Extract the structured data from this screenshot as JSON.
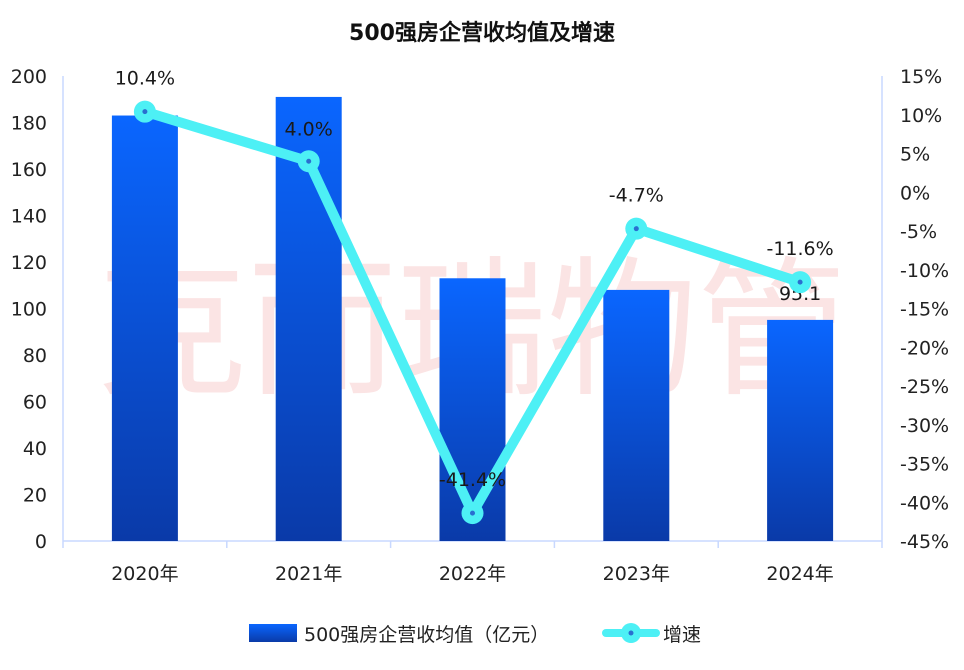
{
  "chart_data": {
    "type": "bar",
    "title": "500强房企营收均值及增速",
    "categories": [
      "2020年",
      "2021年",
      "2022年",
      "2023年",
      "2024年"
    ],
    "series": [
      {
        "name": "500强房企营收均值（亿元）",
        "type": "bar",
        "axis": "left",
        "values": [
          183,
          191,
          113,
          108,
          95.1
        ],
        "data_labels": [
          "",
          "",
          "",
          "",
          "95.1"
        ]
      },
      {
        "name": "增速",
        "type": "line",
        "axis": "right",
        "values": [
          10.4,
          4.0,
          -41.4,
          -4.7,
          -11.6
        ],
        "data_labels": [
          "10.4%",
          "4.0%",
          "-41.4%",
          "-4.7%",
          "-11.6%"
        ]
      }
    ],
    "left_axis": {
      "ylim": [
        0,
        200
      ],
      "ticks": [
        "0",
        "20",
        "40",
        "60",
        "80",
        "100",
        "120",
        "140",
        "160",
        "180",
        "200"
      ]
    },
    "right_axis": {
      "ylim": [
        -45,
        15
      ],
      "ticks": [
        "-45%",
        "-40%",
        "-35%",
        "-30%",
        "-25%",
        "-20%",
        "-15%",
        "-10%",
        "-5%",
        "0%",
        "5%",
        "10%",
        "15%"
      ]
    },
    "grid": false,
    "legend_position": "bottom",
    "colors": {
      "bar_top": "#0a66ff",
      "bar_bottom": "#0a3aa8",
      "line": "#4df0f5",
      "axis": "#c8d8ff"
    }
  },
  "watermark": "克而瑞物管"
}
